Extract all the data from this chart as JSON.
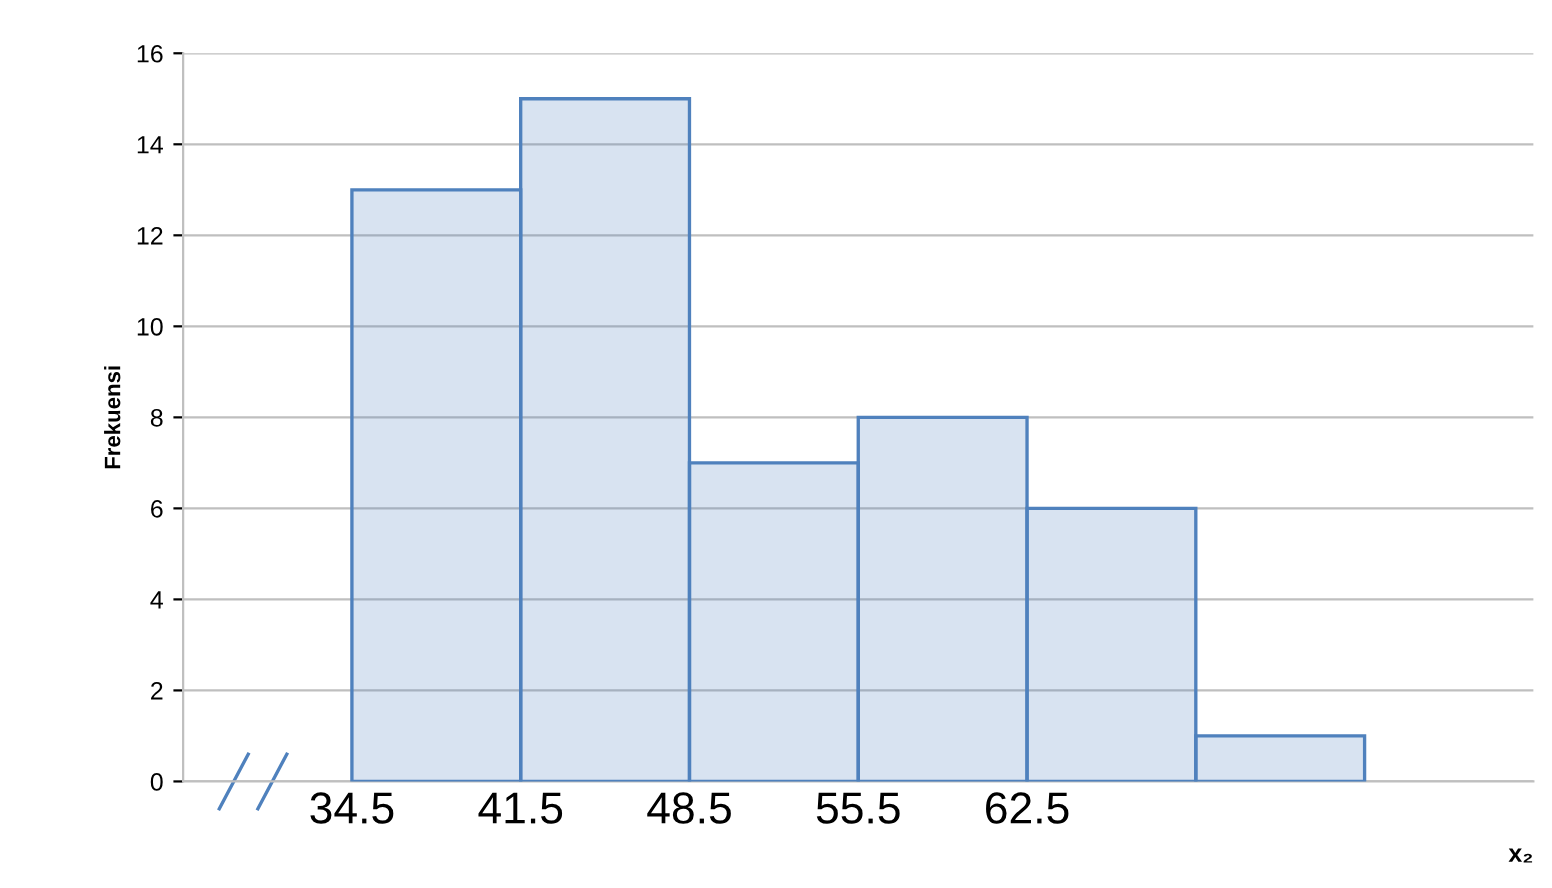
{
  "chart_data": {
    "type": "histogram",
    "bins": [
      34.5,
      41.5,
      48.5,
      55.5,
      62.5,
      69.5,
      76.5
    ],
    "values": [
      13,
      15,
      7,
      8,
      6,
      1
    ],
    "color": "#4f81bd",
    "xlabel": "x₂",
    "ylabel": "Frekuensi",
    "xlim": [
      27.5,
      83.5
    ],
    "xticks": [
      34.5,
      41.5,
      48.5,
      55.5,
      62.5
    ],
    "ylim": [
      0,
      16
    ],
    "yticks": [
      0,
      2,
      4,
      6,
      8,
      10,
      12,
      14,
      16
    ],
    "grid": "y"
  }
}
